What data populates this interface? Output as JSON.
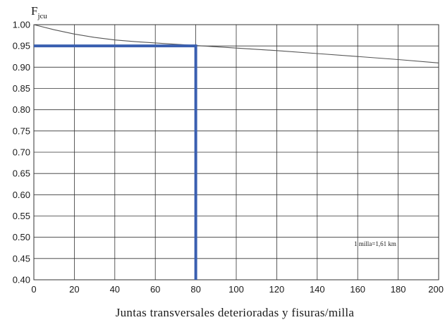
{
  "chart_data": {
    "type": "line",
    "ylabel_main": "F",
    "ylabel_sub": "jcu",
    "xlabel": "Juntas transversales deterioradas y fisuras/milla",
    "xlim": [
      0,
      200
    ],
    "ylim": [
      0.4,
      1.0
    ],
    "x_ticks": [
      0,
      20,
      40,
      60,
      80,
      100,
      120,
      140,
      160,
      180,
      200
    ],
    "x_tick_labels": [
      "0",
      "20",
      "40",
      "60",
      "80",
      "100",
      "120",
      "140",
      "160",
      "180",
      "200"
    ],
    "y_ticks": [
      0.4,
      0.45,
      0.5,
      0.55,
      0.6,
      0.65,
      0.7,
      0.75,
      0.8,
      0.85,
      0.9,
      0.95,
      1.0
    ],
    "y_tick_labels": [
      "0.40",
      "0.45",
      "0.50",
      "0.55",
      "0.60",
      "0.65",
      "0.70",
      "0.75",
      "0.80",
      "0.85",
      "0.90",
      "0.95",
      "1.00"
    ],
    "grid": true,
    "series": [
      {
        "x": [
          0,
          10,
          20,
          30,
          40,
          50,
          60,
          80,
          100,
          120,
          140,
          160,
          180,
          200
        ],
        "values": [
          1.0,
          0.988,
          0.978,
          0.97,
          0.964,
          0.96,
          0.957,
          0.951,
          0.945,
          0.939,
          0.932,
          0.925,
          0.918,
          0.91
        ]
      }
    ],
    "highlight": {
      "x": 80,
      "y": 0.95,
      "color": "#3a5fb0"
    },
    "annotation": "1 milla=1,61 km",
    "colors": {
      "curve": "#555555",
      "grid": "#333333",
      "highlight": "#3a5fb0"
    }
  }
}
